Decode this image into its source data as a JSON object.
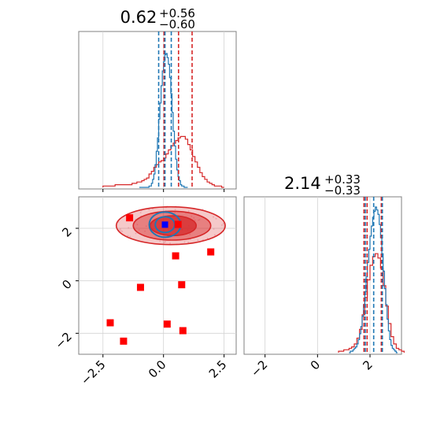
{
  "chart_data": {
    "type": "corner",
    "colors": {
      "blue": "#1f77b4",
      "red": "#d62728",
      "red_marker": "#ff0000",
      "blue_marker": "#0000ff",
      "grid": "#d3d3d3",
      "frame": "#808080"
    },
    "panels": [
      {
        "id": "top-histogram",
        "type": "histogram",
        "title": {
          "value": "0.62",
          "sup": "+0.56",
          "sub": "−0.60"
        },
        "xlim": [
          -3.5,
          3.0
        ],
        "grid_x": [
          -2.5,
          0.0,
          2.5
        ],
        "blue_quantile_lines": [
          -0.2,
          0.06,
          0.32
        ],
        "red_quantile_lines": [
          0.02,
          0.62,
          1.18
        ],
        "blue_hist": {
          "x0": -1.0,
          "step": 0.05,
          "heights": [
            0,
            0,
            0,
            0,
            0,
            0,
            0,
            0,
            0.01,
            0.01,
            0.03,
            0.06,
            0.1,
            0.17,
            0.27,
            0.37,
            0.51,
            0.63,
            0.76,
            0.87,
            0.94,
            0.99,
            1.0,
            0.97,
            0.92,
            0.82,
            0.7,
            0.56,
            0.42,
            0.31,
            0.21,
            0.13,
            0.08,
            0.05,
            0.02,
            0.01,
            0.01,
            0,
            0,
            0
          ]
        },
        "red_hist": {
          "x0": -2.5,
          "step": 0.1,
          "heights": [
            0.01,
            0.01,
            0.01,
            0.01,
            0.01,
            0.02,
            0.02,
            0.02,
            0.02,
            0.02,
            0.02,
            0.02,
            0.03,
            0.03,
            0.04,
            0.04,
            0.05,
            0.06,
            0.07,
            0.1,
            0.12,
            0.15,
            0.17,
            0.19,
            0.2,
            0.22,
            0.25,
            0.28,
            0.31,
            0.33,
            0.35,
            0.37,
            0.38,
            0.38,
            0.36,
            0.32,
            0.28,
            0.23,
            0.19,
            0.15,
            0.11,
            0.08,
            0.06,
            0.04,
            0.03,
            0.02,
            0.01,
            0.01,
            0.01,
            0.0
          ]
        }
      },
      {
        "id": "scatter-contour",
        "type": "scatter",
        "xlim": [
          -3.5,
          3.0
        ],
        "ylim": [
          -2.8,
          3.2
        ],
        "xticks": [
          {
            "value": -2.5,
            "label": "−2.5"
          },
          {
            "value": 0.0,
            "label": "0.0"
          },
          {
            "value": 2.5,
            "label": "2.5"
          }
        ],
        "yticks": [
          {
            "value": -2,
            "label": "−2"
          },
          {
            "value": 0,
            "label": "0"
          },
          {
            "value": 2,
            "label": "2"
          }
        ],
        "red_points": [
          [
            -1.4,
            2.4
          ],
          [
            0.6,
            2.15
          ],
          [
            0.5,
            0.95
          ],
          [
            1.95,
            1.1
          ],
          [
            -0.95,
            -0.25
          ],
          [
            0.75,
            -0.15
          ],
          [
            -2.2,
            -1.6
          ],
          [
            0.15,
            -1.65
          ],
          [
            0.8,
            -1.9
          ],
          [
            -1.65,
            -2.3
          ]
        ],
        "blue_point": [
          0.06,
          2.14
        ],
        "red_contours": [
          {
            "cx": 0.3,
            "cy": 2.1,
            "rx": 2.25,
            "ry": 0.72,
            "opacity": 0.25
          },
          {
            "cx": 0.35,
            "cy": 2.1,
            "rx": 1.6,
            "ry": 0.55,
            "opacity": 0.45
          },
          {
            "cx": 0.4,
            "cy": 2.1,
            "rx": 0.95,
            "ry": 0.38,
            "opacity": 0.75
          }
        ],
        "blue_contours": [
          {
            "cx": 0.06,
            "cy": 2.14,
            "rx": 0.65,
            "ry": 0.48
          },
          {
            "cx": 0.06,
            "cy": 2.14,
            "rx": 0.4,
            "ry": 0.3
          }
        ]
      },
      {
        "id": "right-histogram",
        "type": "histogram",
        "title": {
          "value": "2.14",
          "sup": "+0.33",
          "sub": "−0.33"
        },
        "xlim": [
          -2.8,
          3.2
        ],
        "xticks": [
          {
            "value": -2,
            "label": "−2"
          },
          {
            "value": 0,
            "label": "0"
          },
          {
            "value": 2,
            "label": "2"
          }
        ],
        "blue_quantile_lines": [
          1.82,
          2.14,
          2.47
        ],
        "red_quantile_lines": [
          1.77,
          1.89,
          2.43
        ],
        "blue_hist": {
          "x0": 1.2,
          "step": 0.05,
          "heights": [
            0,
            0.01,
            0.01,
            0.02,
            0.03,
            0.04,
            0.06,
            0.09,
            0.13,
            0.18,
            0.25,
            0.33,
            0.42,
            0.52,
            0.62,
            0.71,
            0.8,
            0.87,
            0.93,
            0.97,
            1.0,
            0.98,
            0.95,
            0.88,
            0.79,
            0.68,
            0.56,
            0.44,
            0.33,
            0.23,
            0.15,
            0.09,
            0.05,
            0.03,
            0.02,
            0.01,
            0
          ]
        },
        "red_hist": {
          "x0": 0.8,
          "step": 0.1,
          "heights": [
            0.01,
            0.01,
            0.02,
            0.02,
            0.03,
            0.04,
            0.06,
            0.1,
            0.16,
            0.26,
            0.38,
            0.5,
            0.6,
            0.66,
            0.68,
            0.65,
            0.58,
            0.46,
            0.32,
            0.2,
            0.11,
            0.06,
            0.03,
            0.02,
            0.01
          ]
        }
      }
    ]
  }
}
